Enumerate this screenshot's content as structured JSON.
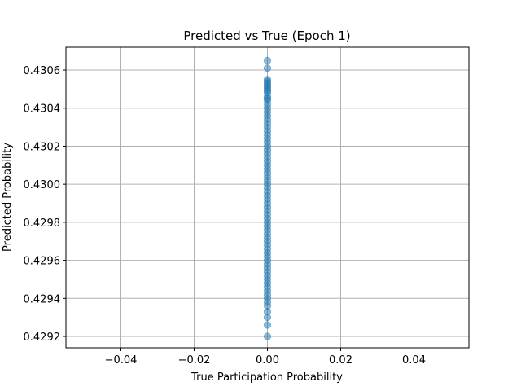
{
  "chart_data": {
    "type": "scatter",
    "title": "Predicted vs True (Epoch 1)",
    "xlabel": "True Participation Probability",
    "ylabel": "Predicted Probability",
    "xlim": [
      -0.055,
      0.055
    ],
    "ylim": [
      0.42914,
      0.43072
    ],
    "xticks": [
      -0.04,
      -0.02,
      0.0,
      0.02,
      0.04
    ],
    "xtick_labels": [
      "−0.04",
      "−0.02",
      "0.00",
      "0.02",
      "0.04"
    ],
    "yticks": [
      0.4292,
      0.4294,
      0.4296,
      0.4298,
      0.43,
      0.4302,
      0.4304,
      0.4306
    ],
    "ytick_labels": [
      "0.4292",
      "0.4294",
      "0.4296",
      "0.4298",
      "0.4300",
      "0.4302",
      "0.4304",
      "0.4306"
    ],
    "grid": true,
    "point_color": "#1f77b4",
    "point_alpha": 0.5,
    "points": [
      {
        "x": 0,
        "y": 0.43065
      },
      {
        "x": 0,
        "y": 0.43061
      },
      {
        "x": 0,
        "y": 0.43055
      },
      {
        "x": 0,
        "y": 0.43054
      },
      {
        "x": 0,
        "y": 0.43053
      },
      {
        "x": 0,
        "y": 0.43052
      },
      {
        "x": 0,
        "y": 0.43051
      },
      {
        "x": 0,
        "y": 0.4305
      },
      {
        "x": 0,
        "y": 0.43049
      },
      {
        "x": 0,
        "y": 0.43048
      },
      {
        "x": 0,
        "y": 0.43046
      },
      {
        "x": 0,
        "y": 0.43045
      },
      {
        "x": 0,
        "y": 0.43044
      },
      {
        "x": 0,
        "y": 0.43042
      },
      {
        "x": 0,
        "y": 0.4304
      },
      {
        "x": 0,
        "y": 0.43038
      },
      {
        "x": 0,
        "y": 0.43036
      },
      {
        "x": 0,
        "y": 0.43034
      },
      {
        "x": 0,
        "y": 0.43032
      },
      {
        "x": 0,
        "y": 0.4303
      },
      {
        "x": 0,
        "y": 0.43028
      },
      {
        "x": 0,
        "y": 0.43026
      },
      {
        "x": 0,
        "y": 0.43024
      },
      {
        "x": 0,
        "y": 0.43022
      },
      {
        "x": 0,
        "y": 0.4302
      },
      {
        "x": 0,
        "y": 0.43018
      },
      {
        "x": 0,
        "y": 0.43016
      },
      {
        "x": 0,
        "y": 0.43014
      },
      {
        "x": 0,
        "y": 0.43012
      },
      {
        "x": 0,
        "y": 0.4301
      },
      {
        "x": 0,
        "y": 0.43008
      },
      {
        "x": 0,
        "y": 0.43006
      },
      {
        "x": 0,
        "y": 0.43004
      },
      {
        "x": 0,
        "y": 0.43002
      },
      {
        "x": 0,
        "y": 0.43
      },
      {
        "x": 0,
        "y": 0.42998
      },
      {
        "x": 0,
        "y": 0.42996
      },
      {
        "x": 0,
        "y": 0.42994
      },
      {
        "x": 0,
        "y": 0.42992
      },
      {
        "x": 0,
        "y": 0.4299
      },
      {
        "x": 0,
        "y": 0.42988
      },
      {
        "x": 0,
        "y": 0.42986
      },
      {
        "x": 0,
        "y": 0.42984
      },
      {
        "x": 0,
        "y": 0.42982
      },
      {
        "x": 0,
        "y": 0.4298
      },
      {
        "x": 0,
        "y": 0.42978
      },
      {
        "x": 0,
        "y": 0.42976
      },
      {
        "x": 0,
        "y": 0.42974
      },
      {
        "x": 0,
        "y": 0.42972
      },
      {
        "x": 0,
        "y": 0.4297
      },
      {
        "x": 0,
        "y": 0.42968
      },
      {
        "x": 0,
        "y": 0.42966
      },
      {
        "x": 0,
        "y": 0.42964
      },
      {
        "x": 0,
        "y": 0.42962
      },
      {
        "x": 0,
        "y": 0.4296
      },
      {
        "x": 0,
        "y": 0.42958
      },
      {
        "x": 0,
        "y": 0.42956
      },
      {
        "x": 0,
        "y": 0.42954
      },
      {
        "x": 0,
        "y": 0.42952
      },
      {
        "x": 0,
        "y": 0.4295
      },
      {
        "x": 0,
        "y": 0.42948
      },
      {
        "x": 0,
        "y": 0.42946
      },
      {
        "x": 0,
        "y": 0.42944
      },
      {
        "x": 0,
        "y": 0.42942
      },
      {
        "x": 0,
        "y": 0.4294
      },
      {
        "x": 0,
        "y": 0.42938
      },
      {
        "x": 0,
        "y": 0.42936
      },
      {
        "x": 0,
        "y": 0.42933
      },
      {
        "x": 0,
        "y": 0.4293
      },
      {
        "x": 0,
        "y": 0.42926
      },
      {
        "x": 0,
        "y": 0.4292
      }
    ]
  }
}
